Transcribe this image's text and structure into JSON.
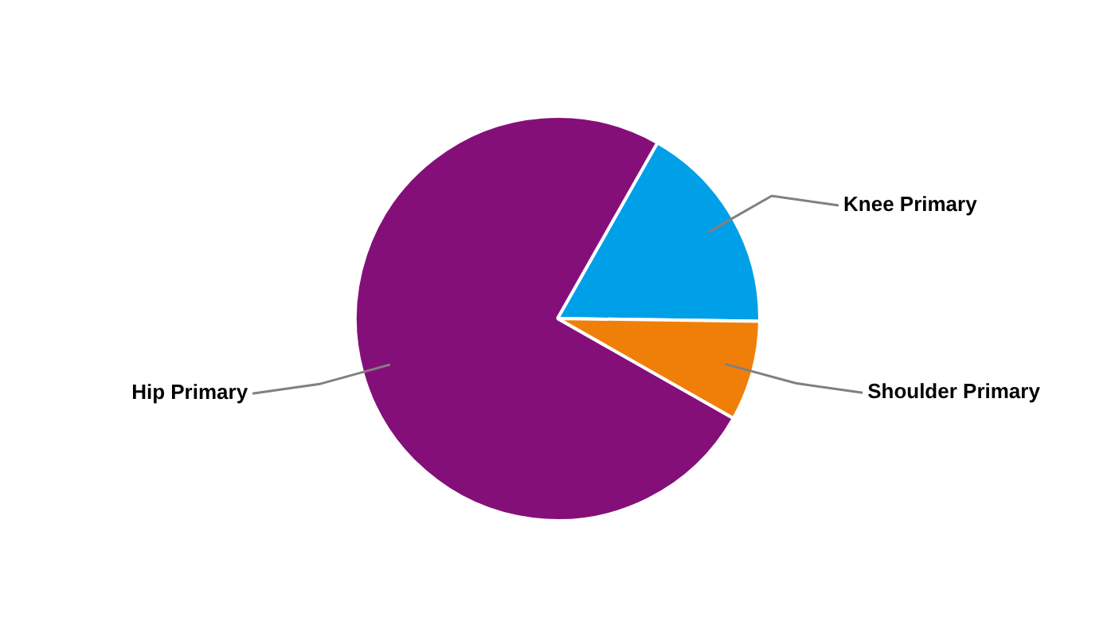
{
  "chart_data": {
    "type": "pie",
    "categories": [
      "Knee Primary",
      "Shoulder Primary",
      "Hip Primary"
    ],
    "values": [
      17,
      8,
      75
    ],
    "colors": [
      "#00a0e9",
      "#f07f09",
      "#850f79"
    ],
    "legend": false
  }
}
